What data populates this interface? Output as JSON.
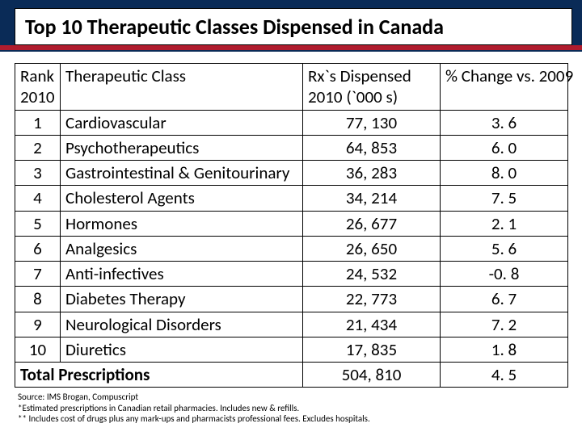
{
  "colors": {
    "header_bg": "#0a2b57",
    "accent_red": "#b01c2e",
    "table_border": "#000000",
    "background": "#ffffff",
    "text": "#000000"
  },
  "typography": {
    "title_fontsize": 26,
    "header_cell_fontsize": 21,
    "body_cell_fontsize": 21,
    "footnote_fontsize": 11,
    "font_family": "Calibri"
  },
  "title": "Top 10 Therapeutic Classes Dispensed in Canada",
  "table": {
    "columns": {
      "rank": "Rank 2010",
      "class": "Therapeutic Class",
      "rx": "Rx`s Dispensed 2010 (`000 s)",
      "change": "% Change        vs. 2009"
    },
    "rows": [
      {
        "rank": "1",
        "class": "Cardiovascular",
        "rx": "77, 130",
        "change": "3. 6"
      },
      {
        "rank": "2",
        "class": "Psychotherapeutics",
        "rx": "64, 853",
        "change": "6. 0"
      },
      {
        "rank": "3",
        "class": "Gastrointestinal & Genitourinary",
        "rx": "36, 283",
        "change": "8. 0"
      },
      {
        "rank": "4",
        "class": "Cholesterol Agents",
        "rx": "34, 214",
        "change": "7. 5"
      },
      {
        "rank": "5",
        "class": "Hormones",
        "rx": "26, 677",
        "change": "2. 1"
      },
      {
        "rank": "6",
        "class": "Analgesics",
        "rx": "26, 650",
        "change": "5. 6"
      },
      {
        "rank": "7",
        "class": "Anti-infectives",
        "rx": "24, 532",
        "change": "-0. 8"
      },
      {
        "rank": "8",
        "class": "Diabetes Therapy",
        "rx": "22, 773",
        "change": "6. 7"
      },
      {
        "rank": "9",
        "class": "Neurological Disorders",
        "rx": "21, 434",
        "change": "7. 2"
      },
      {
        "rank": "10",
        "class": "Diuretics",
        "rx": "17, 835",
        "change": "1. 8"
      }
    ],
    "total": {
      "label": "Total Prescriptions",
      "rx": "504, 810",
      "change": "4. 5"
    }
  },
  "footnote": {
    "line1": "Source: IMS Brogan, Compuscript",
    "line2": "*Estimated prescriptions in Canadian retail pharmacies. Includes new & refills.",
    "line3": "** Includes cost of drugs plus any mark-ups and pharmacists professional fees. Excludes hospitals."
  }
}
